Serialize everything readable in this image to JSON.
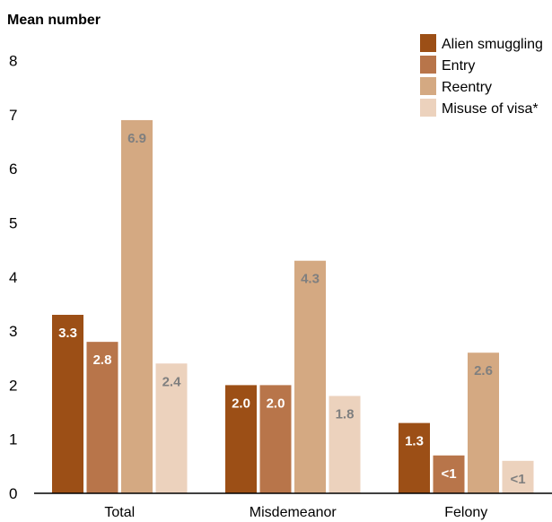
{
  "chart_data": {
    "type": "bar",
    "ylabel": "Mean number",
    "xlabel": "",
    "ylim": [
      0,
      8
    ],
    "yticks": [
      "0",
      "1",
      "2",
      "3",
      "4",
      "5",
      "6",
      "7",
      "8"
    ],
    "categories": [
      "Total",
      "Misdemeanor",
      "Felony"
    ],
    "legend_position": "top-right",
    "grid": false,
    "series": [
      {
        "name": "Alien smuggling",
        "color": "#9c4f16",
        "label_color": "#ffffff",
        "values": [
          3.3,
          2.0,
          1.3
        ],
        "labels": [
          "3.3",
          "2.0",
          "1.3"
        ]
      },
      {
        "name": "Entry",
        "color": "#b8754a",
        "label_color": "#ffffff",
        "values": [
          2.8,
          2.0,
          0.7
        ],
        "labels": [
          "2.8",
          "2.0",
          "<1"
        ]
      },
      {
        "name": "Reentry",
        "color": "#d4a982",
        "label_color": "#7f7f7f",
        "values": [
          6.9,
          4.3,
          2.6
        ],
        "labels": [
          "6.9",
          "4.3",
          "2.6"
        ]
      },
      {
        "name": "Misuse of visa*",
        "color": "#ecd2bd",
        "label_color": "#7f7f7f",
        "values": [
          2.4,
          1.8,
          0.6
        ],
        "labels": [
          "2.4",
          "1.8",
          "<1"
        ]
      }
    ]
  }
}
